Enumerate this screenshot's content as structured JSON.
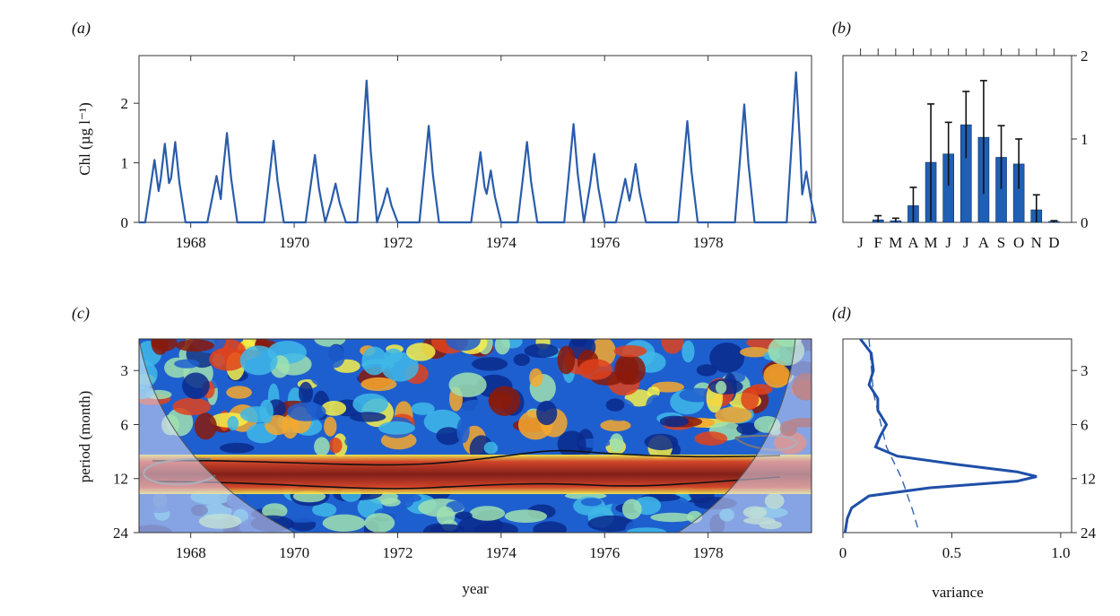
{
  "panel_labels": {
    "a": "(a)",
    "b": "(b)",
    "c": "(c)",
    "d": "(d)"
  },
  "colors": {
    "series": "#2a5caa",
    "bar": "#1f5fb4",
    "error": "#111111",
    "contour_sig": "#111111",
    "contour_coi": "#777777"
  },
  "chart_data": [
    {
      "id": "a",
      "type": "line",
      "ylabel": "Chl (µg l⁻¹)",
      "xlim": [
        1967.0,
        1980.0
      ],
      "ylim": [
        0,
        2.8
      ],
      "xticks": [
        1968,
        1970,
        1972,
        1974,
        1976,
        1978
      ],
      "yticks": [
        0,
        1,
        2
      ],
      "peaks": [
        {
          "x": 1967.3,
          "y": 1.05
        },
        {
          "x": 1967.5,
          "y": 1.32
        },
        {
          "x": 1967.7,
          "y": 1.35
        },
        {
          "x": 1968.5,
          "y": 0.78
        },
        {
          "x": 1968.7,
          "y": 1.5
        },
        {
          "x": 1969.6,
          "y": 1.37
        },
        {
          "x": 1970.4,
          "y": 1.13
        },
        {
          "x": 1970.8,
          "y": 0.65
        },
        {
          "x": 1971.4,
          "y": 2.38
        },
        {
          "x": 1971.8,
          "y": 0.57
        },
        {
          "x": 1972.6,
          "y": 1.62
        },
        {
          "x": 1973.6,
          "y": 1.18
        },
        {
          "x": 1973.8,
          "y": 0.87
        },
        {
          "x": 1974.5,
          "y": 1.35
        },
        {
          "x": 1975.4,
          "y": 1.65
        },
        {
          "x": 1975.8,
          "y": 1.15
        },
        {
          "x": 1976.4,
          "y": 0.73
        },
        {
          "x": 1976.6,
          "y": 0.98
        },
        {
          "x": 1977.6,
          "y": 1.7
        },
        {
          "x": 1978.7,
          "y": 1.98
        },
        {
          "x": 1979.7,
          "y": 2.52
        },
        {
          "x": 1979.9,
          "y": 0.85
        }
      ]
    },
    {
      "id": "b",
      "type": "bar",
      "categories": [
        "J",
        "F",
        "M",
        "A",
        "M",
        "J",
        "J",
        "A",
        "S",
        "O",
        "N",
        "D"
      ],
      "values": [
        0.0,
        0.03,
        0.02,
        0.2,
        0.72,
        0.82,
        1.17,
        1.02,
        0.78,
        0.7,
        0.15,
        0.01
      ],
      "errors": [
        0.0,
        0.05,
        0.03,
        0.22,
        0.7,
        0.38,
        0.4,
        0.68,
        0.38,
        0.3,
        0.18,
        0.01
      ],
      "ylim": [
        0,
        2.0
      ],
      "yticks": [
        0,
        1,
        2
      ]
    },
    {
      "id": "c",
      "type": "heatmap",
      "xlabel": "year",
      "ylabel": "period (month)",
      "xlim": [
        1967.0,
        1980.0
      ],
      "period_range": [
        2,
        24
      ],
      "xticks": [
        1968,
        1970,
        1972,
        1974,
        1976,
        1978
      ],
      "yticks": [
        3,
        6,
        12,
        24
      ],
      "colormap": [
        "#0a2a8c",
        "#1e5fd0",
        "#3fb8e8",
        "#9fe0b0",
        "#f7f04a",
        "#f7a82b",
        "#e0421b",
        "#8a1a0a"
      ],
      "annual_band_period": 12,
      "coi_peak_year": 1974.0
    },
    {
      "id": "d",
      "type": "line",
      "xlabel": "variance",
      "xlim": [
        0,
        1.05
      ],
      "period_range": [
        2,
        24
      ],
      "xticks": [
        0,
        0.5,
        1.0
      ],
      "xtick_labels": [
        "0",
        "0.5",
        "1.0"
      ],
      "yticks": [
        3,
        6,
        12,
        24
      ],
      "global_spectrum": [
        {
          "period": 2.0,
          "variance": 0.08
        },
        {
          "period": 2.4,
          "variance": 0.13
        },
        {
          "period": 3.0,
          "variance": 0.14
        },
        {
          "period": 3.6,
          "variance": 0.12
        },
        {
          "period": 4.3,
          "variance": 0.16
        },
        {
          "period": 5.0,
          "variance": 0.16
        },
        {
          "period": 6.0,
          "variance": 0.2
        },
        {
          "period": 7.0,
          "variance": 0.17
        },
        {
          "period": 8.0,
          "variance": 0.15
        },
        {
          "period": 9.0,
          "variance": 0.25
        },
        {
          "period": 10.0,
          "variance": 0.52
        },
        {
          "period": 11.0,
          "variance": 0.8
        },
        {
          "period": 11.7,
          "variance": 0.89
        },
        {
          "period": 12.4,
          "variance": 0.8
        },
        {
          "period": 13.5,
          "variance": 0.4
        },
        {
          "period": 15.0,
          "variance": 0.12
        },
        {
          "period": 17.5,
          "variance": 0.04
        },
        {
          "period": 20.0,
          "variance": 0.02
        },
        {
          "period": 24.0,
          "variance": 0.01
        }
      ],
      "significance": [
        {
          "period": 2.0,
          "variance": 0.12
        },
        {
          "period": 4.0,
          "variance": 0.14
        },
        {
          "period": 8.0,
          "variance": 0.2
        },
        {
          "period": 12.0,
          "variance": 0.27
        },
        {
          "period": 18.0,
          "variance": 0.32
        },
        {
          "period": 24.0,
          "variance": 0.35
        }
      ]
    }
  ]
}
